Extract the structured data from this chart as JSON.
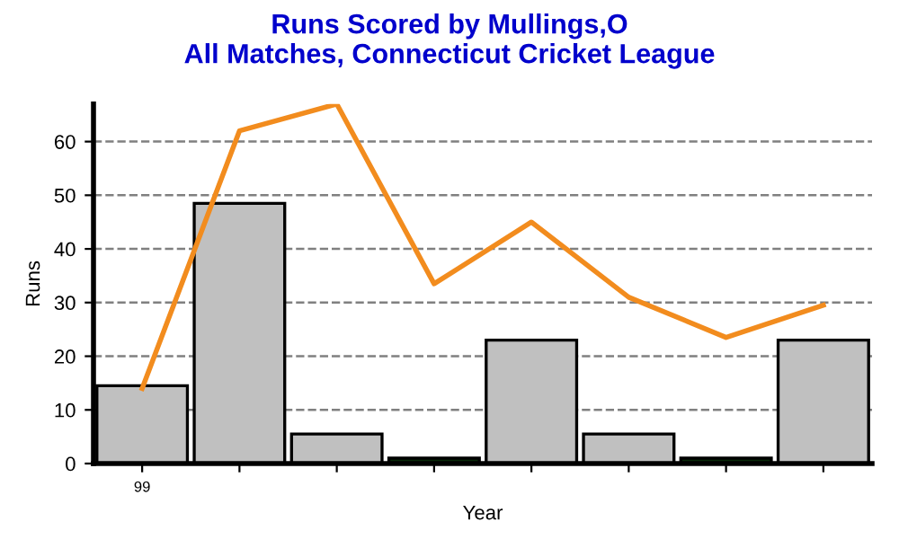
{
  "chart_data": {
    "type": "bar",
    "title": "Runs Scored by Mullings,O\nAll Matches, Connecticut Cricket League",
    "xlabel": "Year",
    "ylabel": "Runs",
    "categories": [
      "99",
      null,
      null,
      null,
      null,
      null,
      null,
      null
    ],
    "series": [
      {
        "colors": [
          "#c0c0c0",
          "#c0c0c0",
          "#c0c0c0",
          "#0a2a0a",
          "#c0c0c0",
          "#c0c0c0",
          "#0a2a0a",
          "#c0c0c0"
        ],
        "values": [
          14.5,
          48.5,
          5.5,
          1,
          23,
          5.5,
          1,
          23
        ]
      },
      {
        "type": "line",
        "color": "#f28c1e",
        "values": [
          14,
          62,
          67,
          33.5,
          45,
          31,
          23.5,
          29.5
        ]
      }
    ],
    "ylim": [
      0,
      67
    ],
    "yticks": [
      0,
      10,
      20,
      30,
      40,
      50,
      60
    ],
    "grid": "y",
    "line_style": "solid",
    "marker": "none"
  }
}
